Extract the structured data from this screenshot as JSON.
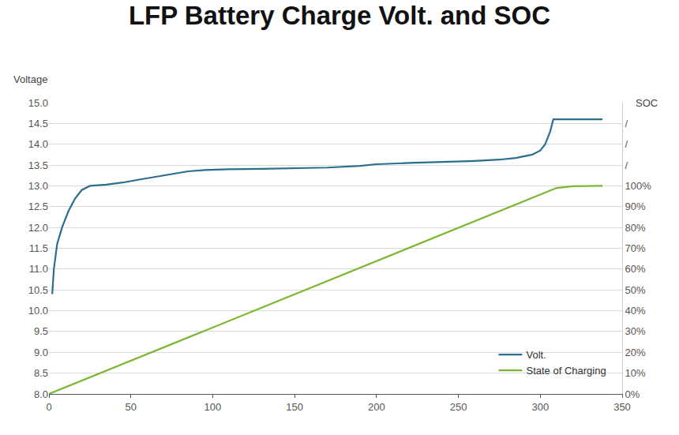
{
  "chart_data": {
    "type": "line",
    "title": "LFP Battery Charge Volt. and SOC",
    "ylabel": "Voltage",
    "y2label": "SOC",
    "xlim": [
      0,
      350
    ],
    "xticks": [
      0,
      50,
      100,
      150,
      200,
      250,
      300,
      350
    ],
    "ylim": [
      8.0,
      15.0
    ],
    "yticks": [
      {
        "value": 8,
        "label": "8.0"
      },
      8.5,
      {
        "value": 9,
        "label": "9.0"
      },
      9.5,
      {
        "value": 10,
        "label": "10.0"
      },
      10.5,
      {
        "value": 11,
        "label": "11.0"
      },
      11.5,
      {
        "value": 12,
        "label": "12.0"
      },
      12.5,
      {
        "value": 13,
        "label": "13.0"
      },
      13.5,
      {
        "value": 14,
        "label": "14.0"
      },
      14.5,
      {
        "value": 15,
        "label": "15.0"
      }
    ],
    "y2lim": [
      0,
      140
    ],
    "y2ticks": [
      {
        "value": 0,
        "label": "0%"
      },
      {
        "value": 10,
        "label": "10%"
      },
      {
        "value": 20,
        "label": "20%"
      },
      {
        "value": 30,
        "label": "30%"
      },
      {
        "value": 40,
        "label": "40%"
      },
      {
        "value": 50,
        "label": "50%"
      },
      {
        "value": 60,
        "label": "60%"
      },
      {
        "value": 70,
        "label": "70%"
      },
      {
        "value": 80,
        "label": "80%"
      },
      {
        "value": 90,
        "label": "90%"
      },
      {
        "value": 100,
        "label": "100%"
      },
      {
        "value": 110,
        "label": "/"
      },
      {
        "value": 120,
        "label": "/"
      },
      {
        "value": 130,
        "label": "/"
      }
    ],
    "grid": true,
    "legend": "lower right",
    "series": [
      {
        "name": "Volt.",
        "color": "#2b6f8f",
        "axis": "y",
        "x": [
          2,
          3,
          5,
          8,
          12,
          16,
          20,
          25,
          35,
          45,
          55,
          65,
          75,
          85,
          95,
          110,
          130,
          150,
          170,
          190,
          200,
          220,
          240,
          260,
          275,
          285,
          295,
          300,
          303,
          306,
          308,
          320,
          338
        ],
        "values": [
          10.4,
          11.0,
          11.6,
          12.0,
          12.4,
          12.7,
          12.9,
          13.0,
          13.03,
          13.08,
          13.15,
          13.22,
          13.28,
          13.35,
          13.38,
          13.4,
          13.41,
          13.42,
          13.44,
          13.48,
          13.52,
          13.55,
          13.57,
          13.6,
          13.63,
          13.67,
          13.75,
          13.85,
          14.0,
          14.3,
          14.6,
          14.6,
          14.6
        ]
      },
      {
        "name": "State of Charging",
        "color": "#7cb733",
        "axis": "y2",
        "x": [
          0,
          50,
          100,
          150,
          200,
          250,
          300,
          310,
          320,
          338
        ],
        "values": [
          0,
          16,
          32,
          48,
          64,
          80,
          96,
          99,
          99.8,
          100
        ]
      }
    ]
  }
}
